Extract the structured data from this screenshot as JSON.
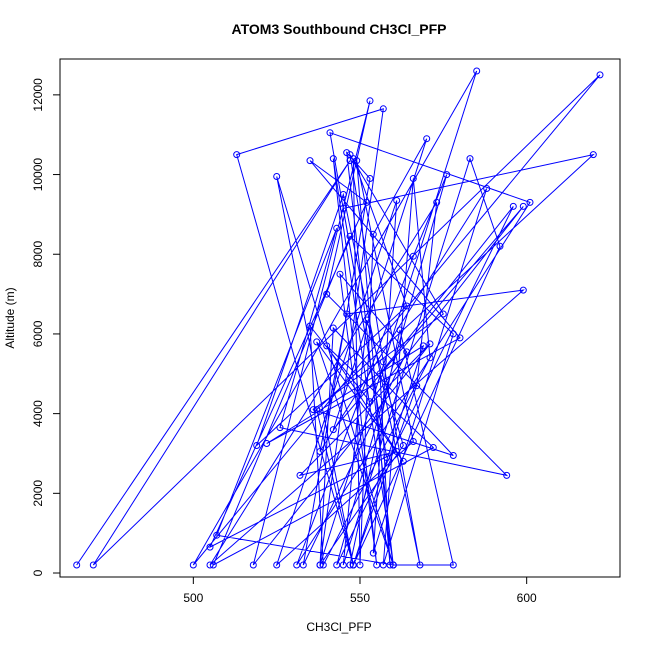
{
  "chart_data": {
    "type": "scatter",
    "title": "ATOM3 Southbound CH3Cl_PFP",
    "xlabel": "CH3Cl_PFP",
    "ylabel": "Altitude (m)",
    "xlim": [
      460,
      628
    ],
    "ylim": [
      -100,
      12900
    ],
    "x_ticks": [
      500,
      550,
      600
    ],
    "y_ticks": [
      0,
      2000,
      4000,
      6000,
      8000,
      10000,
      12000
    ],
    "grid": false,
    "legend": "none",
    "connected": true,
    "colors": {
      "series": "#0000ff",
      "axis": "#000000",
      "background": "#ffffff"
    },
    "series": [
      {
        "x": [
          465,
          547,
          470,
          622,
          500,
          585,
          538,
          557,
          513,
          548,
          525,
          560,
          507,
          543,
          526,
          594,
          540,
          553,
          518,
          571,
          532,
          561,
          505,
          552,
          535,
          580,
          522,
          569,
          548,
          537,
          620,
          545,
          558,
          541,
          601,
          531,
          566,
          576,
          543,
          596,
          556,
          559,
          549,
          566,
          525,
          561,
          554,
          588,
          538,
          546,
          599,
          505,
          573,
          567,
          548,
          592,
          583,
          545,
          552,
          563,
          538,
          542,
          578,
          536,
          575,
          547,
          557,
          568,
          545,
          519,
          564,
          548,
          550,
          554,
          570,
          542,
          599,
          553,
          535,
          539,
          571,
          566,
          557,
          578,
          547,
          506,
          572,
          540,
          563,
          537,
          560,
          546,
          553,
          533,
          564,
          544,
          555,
          542,
          560,
          578,
          562,
          547
        ],
        "y": [
          200,
          10350,
          200,
          12500,
          200,
          12600,
          200,
          11650,
          10500,
          200,
          9950,
          200,
          950,
          8650,
          3650,
          2450,
          7000,
          11850,
          200,
          5750,
          2450,
          3050,
          650,
          9300,
          10350,
          5900,
          3250,
          5700,
          200,
          4100,
          10500,
          9150,
          2900,
          11050,
          9300,
          200,
          7950,
          10000,
          200,
          9200,
          5000,
          200,
          10350,
          3300,
          200,
          9350,
          500,
          9650,
          3050,
          6500,
          7100,
          200,
          9300,
          4700,
          200,
          8200,
          10400,
          200,
          6350,
          3200,
          200,
          6150,
          2950,
          4100,
          6500,
          10500,
          5300,
          200,
          9500,
          3200,
          6700,
          10400,
          200,
          8500,
          10900,
          3600,
          9200,
          4300,
          6200,
          200,
          5400,
          9900,
          200,
          6000,
          8450,
          200,
          3150,
          5700,
          2800,
          5800,
          200,
          10550,
          9900,
          200,
          5550,
          7500,
          200,
          10400,
          200,
          200,
          6100,
          200
        ]
      }
    ]
  }
}
